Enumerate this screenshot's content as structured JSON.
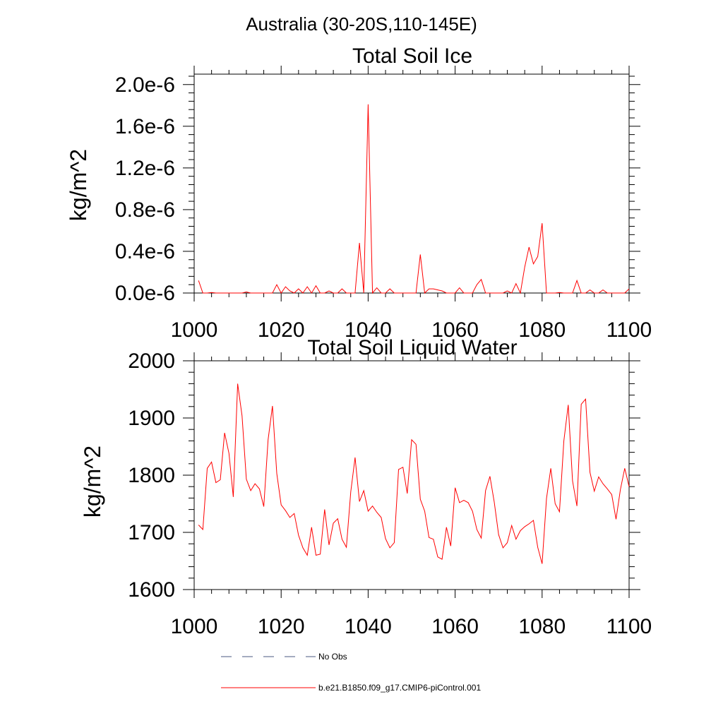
{
  "title": "Australia (30-20S,110-145E)",
  "legend": {
    "items": [
      {
        "label": "No Obs",
        "style": "dashed",
        "color": "#4a5a80"
      },
      {
        "label": "b.e21.B1850.f09_g17.CMIP6-piControl.001",
        "style": "solid",
        "color": "#ff0000"
      }
    ]
  },
  "chart_data": [
    {
      "type": "line",
      "title": "Total Soil Ice",
      "xlabel": "",
      "ylabel": "kg/m^2",
      "xlim": [
        1000,
        1100
      ],
      "ylim": [
        0,
        2.1e-06
      ],
      "xticks": [
        1000,
        1020,
        1040,
        1060,
        1080,
        1100
      ],
      "xtick_labels": [
        "1000",
        "1020",
        "1040",
        "1060",
        "1080",
        "1100"
      ],
      "yticks": [
        0,
        4e-07,
        8e-07,
        1.2e-06,
        1.6e-06,
        2e-06
      ],
      "ytick_labels": [
        "0.0e-6",
        "0.4e-6",
        "0.8e-6",
        "1.2e-6",
        "1.6e-6",
        "2.0e-6"
      ],
      "series": [
        {
          "name": "b.e21.B1850.f09_g17.CMIP6-piControl.001",
          "color": "#ff0000",
          "x": [
            1001,
            1002,
            1003,
            1004,
            1005,
            1006,
            1007,
            1008,
            1009,
            1010,
            1011,
            1012,
            1013,
            1014,
            1015,
            1016,
            1017,
            1018,
            1019,
            1020,
            1021,
            1022,
            1023,
            1024,
            1025,
            1026,
            1027,
            1028,
            1029,
            1030,
            1031,
            1032,
            1033,
            1034,
            1035,
            1036,
            1037,
            1038,
            1039,
            1040,
            1041,
            1042,
            1043,
            1044,
            1045,
            1046,
            1047,
            1048,
            1049,
            1050,
            1051,
            1052,
            1053,
            1054,
            1055,
            1056,
            1057,
            1058,
            1059,
            1060,
            1061,
            1062,
            1063,
            1064,
            1065,
            1066,
            1067,
            1068,
            1069,
            1070,
            1071,
            1072,
            1073,
            1074,
            1075,
            1076,
            1077,
            1078,
            1079,
            1080,
            1081,
            1082,
            1083,
            1084,
            1085,
            1086,
            1087,
            1088,
            1089,
            1090,
            1091,
            1092,
            1093,
            1094,
            1095,
            1096,
            1097,
            1098,
            1099,
            1100
          ],
          "y": [
            1.2e-07,
            0,
            0,
            5e-09,
            0,
            0,
            0,
            0,
            0,
            0,
            0,
            1e-08,
            0,
            0,
            0,
            0,
            0,
            0,
            8e-08,
            0,
            6e-08,
            2e-08,
            0,
            4e-08,
            0,
            6e-08,
            0,
            7e-08,
            0,
            0,
            2e-08,
            0,
            0,
            4e-08,
            0,
            0,
            0,
            4.8e-07,
            0,
            1.81e-06,
            0,
            5e-08,
            0,
            0,
            4e-08,
            0,
            0,
            0,
            0,
            0,
            0,
            3.7e-07,
            0,
            4e-08,
            4e-08,
            3e-08,
            2e-08,
            0,
            0,
            0,
            5e-08,
            0,
            0,
            0,
            8e-08,
            1.3e-07,
            0,
            0,
            0,
            0,
            0,
            2e-08,
            0,
            9e-08,
            0,
            2.5e-07,
            4.4e-07,
            2.8e-07,
            3.5e-07,
            6.7e-07,
            0,
            0,
            0,
            5e-09,
            0,
            0,
            0,
            1.2e-07,
            0,
            0,
            3e-08,
            0,
            0,
            3e-08,
            0,
            0,
            0,
            0,
            0,
            4e-08
          ]
        }
      ]
    },
    {
      "type": "line",
      "title": "Total Soil Liquid Water",
      "xlabel": "",
      "ylabel": "kg/m^2",
      "xlim": [
        1000,
        1100
      ],
      "ylim": [
        1600,
        2000
      ],
      "xticks": [
        1000,
        1020,
        1040,
        1060,
        1080,
        1100
      ],
      "xtick_labels": [
        "1000",
        "1020",
        "1040",
        "1060",
        "1080",
        "1100"
      ],
      "yticks": [
        1600,
        1700,
        1800,
        1900,
        2000
      ],
      "ytick_labels": [
        "1600",
        "1700",
        "1800",
        "1900",
        "2000"
      ],
      "series": [
        {
          "name": "b.e21.B1850.f09_g17.CMIP6-piControl.001",
          "color": "#ff0000",
          "x": [
            1001,
            1002,
            1003,
            1004,
            1005,
            1006,
            1007,
            1008,
            1009,
            1010,
            1011,
            1012,
            1013,
            1014,
            1015,
            1016,
            1017,
            1018,
            1019,
            1020,
            1021,
            1022,
            1023,
            1024,
            1025,
            1026,
            1027,
            1028,
            1029,
            1030,
            1031,
            1032,
            1033,
            1034,
            1035,
            1036,
            1037,
            1038,
            1039,
            1040,
            1041,
            1042,
            1043,
            1044,
            1045,
            1046,
            1047,
            1048,
            1049,
            1050,
            1051,
            1052,
            1053,
            1054,
            1055,
            1056,
            1057,
            1058,
            1059,
            1060,
            1061,
            1062,
            1063,
            1064,
            1065,
            1066,
            1067,
            1068,
            1069,
            1070,
            1071,
            1072,
            1073,
            1074,
            1075,
            1076,
            1077,
            1078,
            1079,
            1080,
            1081,
            1082,
            1083,
            1084,
            1085,
            1086,
            1087,
            1088,
            1089,
            1090,
            1091,
            1092,
            1093,
            1094,
            1095,
            1096,
            1097,
            1098,
            1099,
            1100
          ],
          "y": [
            1713,
            1705,
            1812,
            1823,
            1787,
            1792,
            1874,
            1838,
            1762,
            1960,
            1904,
            1793,
            1773,
            1785,
            1776,
            1745,
            1862,
            1921,
            1803,
            1748,
            1738,
            1726,
            1733,
            1695,
            1673,
            1660,
            1709,
            1660,
            1662,
            1740,
            1678,
            1716,
            1724,
            1688,
            1674,
            1771,
            1831,
            1754,
            1773,
            1737,
            1746,
            1735,
            1726,
            1689,
            1673,
            1682,
            1810,
            1814,
            1768,
            1862,
            1854,
            1758,
            1737,
            1691,
            1688,
            1657,
            1653,
            1709,
            1676,
            1778,
            1752,
            1756,
            1752,
            1737,
            1705,
            1690,
            1773,
            1798,
            1753,
            1696,
            1673,
            1682,
            1712,
            1688,
            1703,
            1710,
            1715,
            1721,
            1674,
            1645,
            1759,
            1812,
            1750,
            1736,
            1860,
            1923,
            1790,
            1746,
            1924,
            1933,
            1805,
            1772,
            1797,
            1785,
            1776,
            1766,
            1723,
            1775,
            1812,
            1780
          ]
        }
      ]
    }
  ]
}
